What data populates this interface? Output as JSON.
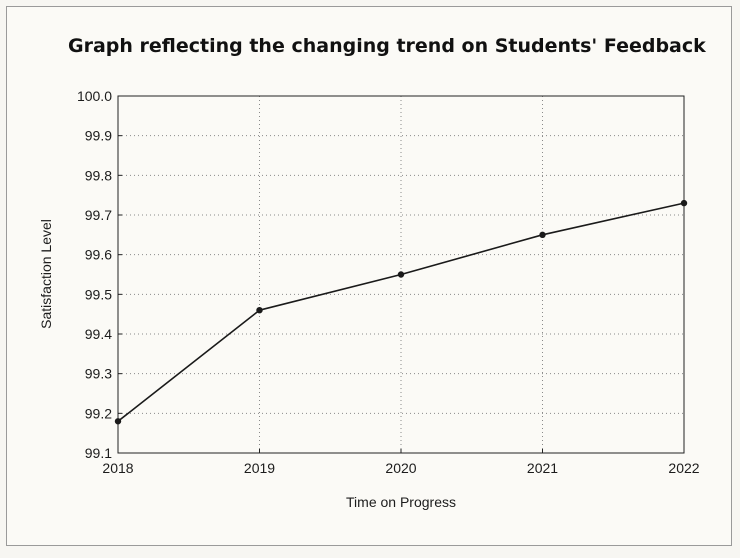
{
  "chart_data": {
    "type": "line",
    "title": "Graph reflecting the changing trend on Students' Feedback",
    "xlabel": "Time on Progress",
    "ylabel": "Satisfaction Level",
    "x": [
      "2018",
      "2019",
      "2020",
      "2021",
      "2022"
    ],
    "series": [
      {
        "values": [
          99.18,
          99.46,
          99.55,
          99.65,
          99.73
        ]
      }
    ],
    "ylim": [
      99.1,
      100.0
    ],
    "yticks": [
      "99.1",
      "99.2",
      "99.3",
      "99.4",
      "99.5",
      "99.6",
      "99.7",
      "99.8",
      "99.9",
      "100.0"
    ],
    "grid": true,
    "line_color": "#1a1a1a",
    "grid_color": "#8a8a8a"
  }
}
